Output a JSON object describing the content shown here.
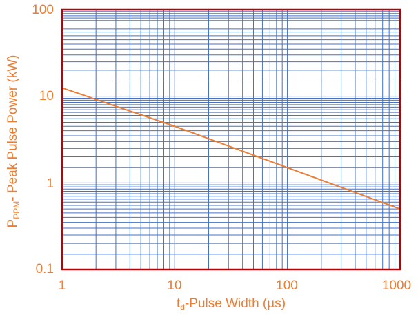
{
  "colors": {
    "grid": "#4472c4",
    "frame": "#c00000",
    "curve": "#ed7d31",
    "text": "#ed7d31"
  },
  "chart_data": {
    "type": "line",
    "x_scale": "log",
    "y_scale": "log",
    "xlim": [
      1,
      1000
    ],
    "ylim": [
      0.1,
      100
    ],
    "grid": true,
    "legend": "none",
    "x_ticks": [
      "1",
      "10",
      "100",
      "1000"
    ],
    "y_ticks": [
      "0.1",
      "1",
      "10",
      "100"
    ],
    "xlabel": {
      "prefix": "t",
      "sub": "d",
      "rest": "-Pulse Width (µs)"
    },
    "ylabel": {
      "prefix": "P",
      "sub": "PPM",
      "rest": "- Peak Pulse Power (kW)"
    },
    "series": [
      {
        "points": [
          {
            "x": 1,
            "y": 12.5
          },
          {
            "x": 10,
            "y": 4.5
          },
          {
            "x": 100,
            "y": 1.5
          },
          {
            "x": 1000,
            "y": 0.5
          }
        ]
      }
    ]
  }
}
